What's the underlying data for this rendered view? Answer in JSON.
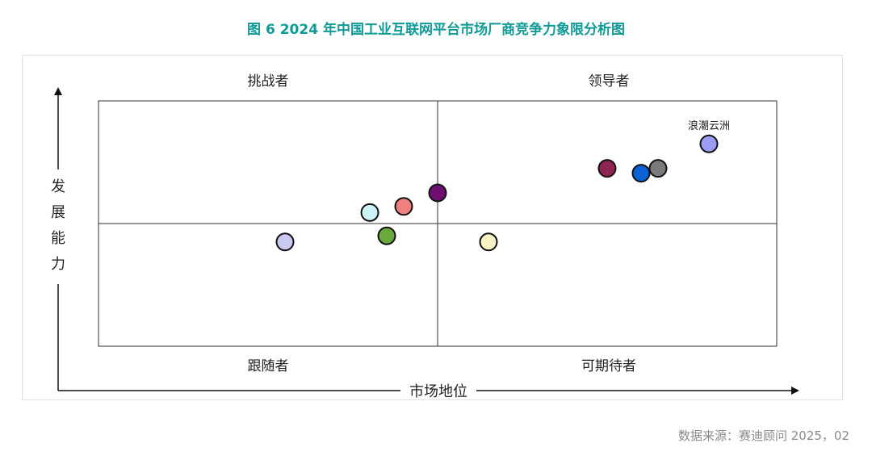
{
  "header": {
    "figure_title": "图 6   2024 年中国工业互联网平台市场厂商竞争力象限分析图",
    "title_color": "#0f9a96"
  },
  "footer": {
    "source": "数据来源：赛迪顾问   2025，02"
  },
  "chart_data": {
    "type": "scatter",
    "title": "",
    "xlabel": "市场地位",
    "ylabel": "发展能力",
    "xlim": [
      0,
      100
    ],
    "ylim": [
      0,
      100
    ],
    "grid": false,
    "quadrants": {
      "top_left": "挑战者",
      "top_right": "领导者",
      "bottom_left": "跟随者",
      "bottom_right": "可期待者"
    },
    "points": [
      {
        "x": 27.5,
        "y": 42.5,
        "color": "#c9c9f2",
        "label": ""
      },
      {
        "x": 40.0,
        "y": 54.5,
        "color": "#ccf4f6",
        "label": ""
      },
      {
        "x": 42.5,
        "y": 45.0,
        "color": "#6aaa3c",
        "label": ""
      },
      {
        "x": 45.0,
        "y": 57.0,
        "color": "#f08080",
        "label": ""
      },
      {
        "x": 50.0,
        "y": 62.5,
        "color": "#6e0e70",
        "label": ""
      },
      {
        "x": 57.5,
        "y": 42.5,
        "color": "#f5f2c4",
        "label": ""
      },
      {
        "x": 75.0,
        "y": 72.5,
        "color": "#8c2650",
        "label": ""
      },
      {
        "x": 80.0,
        "y": 70.5,
        "color": "#0a63d6",
        "label": ""
      },
      {
        "x": 82.5,
        "y": 72.5,
        "color": "#7a7a7a",
        "label": ""
      },
      {
        "x": 90.0,
        "y": 82.5,
        "color": "#9b9cf5",
        "label": "浪潮云洲"
      }
    ]
  }
}
